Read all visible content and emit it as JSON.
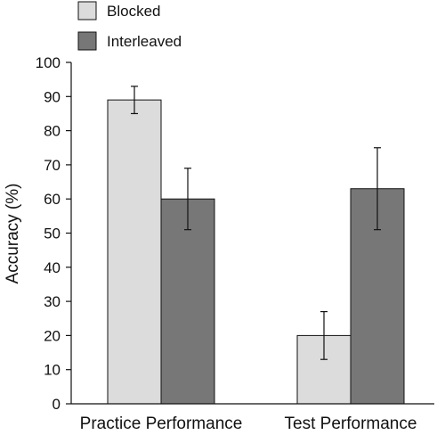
{
  "chart_data": {
    "type": "bar",
    "categories": [
      "Practice Performance",
      "Test Performance"
    ],
    "series": [
      {
        "name": "Blocked",
        "color": "#dcdcdc",
        "values": [
          89,
          20
        ],
        "error_low": [
          85,
          13
        ],
        "error_high": [
          93,
          27
        ]
      },
      {
        "name": "Interleaved",
        "color": "#777777",
        "values": [
          60,
          63
        ],
        "error_low": [
          51,
          51
        ],
        "error_high": [
          69,
          75
        ]
      }
    ],
    "ylabel": "Accuracy (%)",
    "ylim": [
      0,
      100
    ],
    "yticks": [
      0,
      10,
      20,
      30,
      40,
      50,
      60,
      70,
      80,
      90,
      100
    ],
    "legend_position": "top-left",
    "grid": false
  }
}
